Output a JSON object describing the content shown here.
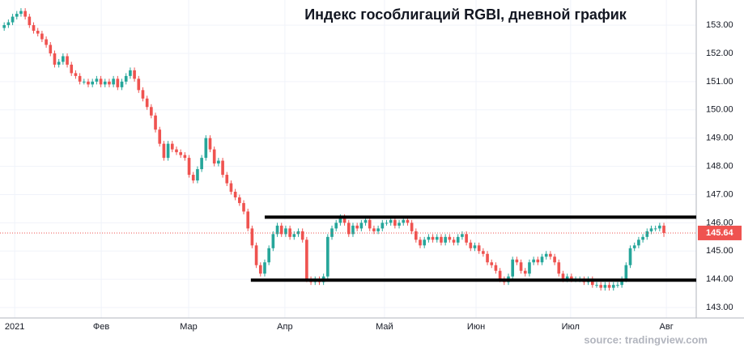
{
  "chart_data": {
    "type": "candlestick",
    "title": "Индекс гособлигаций RGBI, дневной график",
    "source": "source: tradingview.com",
    "up_color": "#26a69a",
    "down_color": "#ef5350",
    "grid": true,
    "xlim": [
      -1,
      164.7
    ],
    "ylim": [
      142.63,
      153.89
    ],
    "xticks": [
      {
        "value": 2.5,
        "label": "2021"
      },
      {
        "value": 23.1,
        "label": "Фев"
      },
      {
        "value": 43.9,
        "label": "Мар"
      },
      {
        "value": 66.8,
        "label": "Апр"
      },
      {
        "value": 90.5,
        "label": "Май"
      },
      {
        "value": 112.3,
        "label": "Июн"
      },
      {
        "value": 134.8,
        "label": "Июл"
      },
      {
        "value": 157.6,
        "label": "Авг"
      }
    ],
    "yticks": [
      {
        "value": 143,
        "label": "143.00"
      },
      {
        "value": 144,
        "label": "144.00"
      },
      {
        "value": 145,
        "label": "145.00"
      },
      {
        "value": 146,
        "label": "146.00"
      },
      {
        "value": 147,
        "label": "147.00"
      },
      {
        "value": 148,
        "label": "148.00"
      },
      {
        "value": 149,
        "label": "149.00"
      },
      {
        "value": 150,
        "label": "150.00"
      },
      {
        "value": 151,
        "label": "151.00"
      },
      {
        "value": 152,
        "label": "152.00"
      },
      {
        "value": 153,
        "label": "153.00"
      }
    ],
    "last_price": 145.64,
    "lines": [
      {
        "y": 146.2,
        "x0": 62,
        "x1": 164.7
      },
      {
        "y": 143.97,
        "x0": 58.7,
        "x1": 164.7
      }
    ],
    "open": [
      152.9,
      153.0,
      153.1,
      153.3,
      153.4,
      153.5,
      153.3,
      153.0,
      152.8,
      152.7,
      152.5,
      152.3,
      152.0,
      151.6,
      151.7,
      151.9,
      151.6,
      151.3,
      151.2,
      151.0,
      151.0,
      150.9,
      151.0,
      151.1,
      150.9,
      151.0,
      150.9,
      151.1,
      150.8,
      151.0,
      151.2,
      151.4,
      151.1,
      150.7,
      150.4,
      150.1,
      149.8,
      149.3,
      148.8,
      148.3,
      148.8,
      148.6,
      148.5,
      148.4,
      148.3,
      147.7,
      147.5,
      147.9,
      148.3,
      149.0,
      148.6,
      148.1,
      148.2,
      147.7,
      147.4,
      147.1,
      146.9,
      146.7,
      146.4,
      145.8,
      145.2,
      144.5,
      144.2,
      144.6,
      145.1,
      145.6,
      145.9,
      145.6,
      145.8,
      145.5,
      145.6,
      145.7,
      145.4,
      144.0,
      143.9,
      144.0,
      143.9,
      144.1,
      145.5,
      145.8,
      146.0,
      146.2,
      146.0,
      145.6,
      145.9,
      145.8,
      146.0,
      146.1,
      145.8,
      145.7,
      145.8,
      146.0,
      146.0,
      146.1,
      145.9,
      146.0,
      146.1,
      146.0,
      145.7,
      145.4,
      145.2,
      145.4,
      145.5,
      145.4,
      145.5,
      145.3,
      145.5,
      145.4,
      145.3,
      145.5,
      145.6,
      145.3,
      145.1,
      145.2,
      145.0,
      144.9,
      144.6,
      144.5,
      144.3,
      144.0,
      143.9,
      144.1,
      144.7,
      144.6,
      144.3,
      144.2,
      144.6,
      144.7,
      144.6,
      144.8,
      144.9,
      144.8,
      144.6,
      144.2,
      144.0,
      144.1,
      144.0,
      144.0,
      144.0,
      143.9,
      144.0,
      143.8,
      143.8,
      143.7,
      143.8,
      143.7,
      143.8,
      143.8,
      144.0,
      144.5,
      145.1,
      145.2,
      145.4,
      145.5,
      145.7,
      145.8,
      145.8,
      145.9
    ],
    "high": [
      153.1,
      153.2,
      153.4,
      153.5,
      153.6,
      153.6,
      153.4,
      153.1,
      152.9,
      152.8,
      152.6,
      152.4,
      152.1,
      151.8,
      152.0,
      152.0,
      151.7,
      151.4,
      151.3,
      151.1,
      151.1,
      151.1,
      151.2,
      151.2,
      151.1,
      151.1,
      151.2,
      151.2,
      151.1,
      151.3,
      151.5,
      151.5,
      151.2,
      150.8,
      150.5,
      150.2,
      149.9,
      149.4,
      148.9,
      148.9,
      148.9,
      148.7,
      148.6,
      148.5,
      148.4,
      147.8,
      148.0,
      148.4,
      149.1,
      149.1,
      148.7,
      148.3,
      148.3,
      147.8,
      147.5,
      147.2,
      147.0,
      146.8,
      146.5,
      145.9,
      145.3,
      144.6,
      144.7,
      145.2,
      145.7,
      146.0,
      146.0,
      145.9,
      145.9,
      145.7,
      145.8,
      145.8,
      145.5,
      144.1,
      144.1,
      144.1,
      144.2,
      145.6,
      145.9,
      146.1,
      146.3,
      146.3,
      146.1,
      146.0,
      146.0,
      146.1,
      146.2,
      146.2,
      145.9,
      145.9,
      146.1,
      146.1,
      146.2,
      146.2,
      146.1,
      146.2,
      146.2,
      146.1,
      145.8,
      145.5,
      145.5,
      145.6,
      145.6,
      145.6,
      145.6,
      145.6,
      145.6,
      145.5,
      145.6,
      145.7,
      145.7,
      145.4,
      145.3,
      145.3,
      145.1,
      145.0,
      144.7,
      144.6,
      144.4,
      144.1,
      144.2,
      144.8,
      144.8,
      144.7,
      144.4,
      144.7,
      144.8,
      144.8,
      144.9,
      145.0,
      145.0,
      144.9,
      144.7,
      144.3,
      144.2,
      144.2,
      144.1,
      144.1,
      144.1,
      144.1,
      144.1,
      143.9,
      143.9,
      143.9,
      143.9,
      143.9,
      143.9,
      144.1,
      144.6,
      145.2,
      145.3,
      145.5,
      145.6,
      145.8,
      145.9,
      145.9,
      146.0,
      146.0
    ],
    "low": [
      152.8,
      152.9,
      153.0,
      153.2,
      153.3,
      153.2,
      152.9,
      152.7,
      152.6,
      152.4,
      152.2,
      151.9,
      151.5,
      151.5,
      151.6,
      151.5,
      151.2,
      151.1,
      150.9,
      150.9,
      150.8,
      150.8,
      150.9,
      150.8,
      150.8,
      150.8,
      150.8,
      150.7,
      150.7,
      150.9,
      151.1,
      151.0,
      150.6,
      150.3,
      150.0,
      149.7,
      149.2,
      148.7,
      148.2,
      148.2,
      148.5,
      148.4,
      148.3,
      148.2,
      147.6,
      147.4,
      147.4,
      147.8,
      148.2,
      148.5,
      148.0,
      148.0,
      147.6,
      147.3,
      147.0,
      146.8,
      146.6,
      146.3,
      145.7,
      145.1,
      144.4,
      144.1,
      144.1,
      144.5,
      145.0,
      145.5,
      145.5,
      145.5,
      145.4,
      145.4,
      145.5,
      145.3,
      143.9,
      143.8,
      143.8,
      143.8,
      143.8,
      144.0,
      145.4,
      145.7,
      145.9,
      145.9,
      145.5,
      145.5,
      145.7,
      145.7,
      145.9,
      145.7,
      145.6,
      145.6,
      145.7,
      145.9,
      145.9,
      145.8,
      145.8,
      145.9,
      145.9,
      145.6,
      145.3,
      145.1,
      145.1,
      145.3,
      145.3,
      145.3,
      145.2,
      145.2,
      145.3,
      145.2,
      145.2,
      145.4,
      145.2,
      145.0,
      145.0,
      144.9,
      144.8,
      144.5,
      144.4,
      144.2,
      143.9,
      143.8,
      143.8,
      144.0,
      144.5,
      144.2,
      144.1,
      144.1,
      144.5,
      144.5,
      144.5,
      144.7,
      144.7,
      144.5,
      144.1,
      143.9,
      143.9,
      143.9,
      143.9,
      143.9,
      143.8,
      143.8,
      143.7,
      143.7,
      143.6,
      143.6,
      143.6,
      143.6,
      143.7,
      143.7,
      143.9,
      144.4,
      145.0,
      145.1,
      145.3,
      145.4,
      145.6,
      145.7,
      145.7,
      145.5
    ],
    "close": [
      153.0,
      153.1,
      153.3,
      153.4,
      153.5,
      153.3,
      153.0,
      152.8,
      152.7,
      152.5,
      152.3,
      152.0,
      151.6,
      151.7,
      151.9,
      151.6,
      151.3,
      151.2,
      151.0,
      151.0,
      150.9,
      151.0,
      151.1,
      150.9,
      151.0,
      150.9,
      151.1,
      150.8,
      151.0,
      151.2,
      151.4,
      151.1,
      150.7,
      150.4,
      150.1,
      149.8,
      149.3,
      148.8,
      148.3,
      148.8,
      148.6,
      148.5,
      148.4,
      148.3,
      147.7,
      147.5,
      147.9,
      148.3,
      149.0,
      148.6,
      148.1,
      148.2,
      147.7,
      147.4,
      147.1,
      146.9,
      146.7,
      146.4,
      145.8,
      145.2,
      144.5,
      144.2,
      144.6,
      145.1,
      145.6,
      145.9,
      145.6,
      145.8,
      145.5,
      145.6,
      145.7,
      145.4,
      144.0,
      143.9,
      144.0,
      143.9,
      144.1,
      145.5,
      145.8,
      146.0,
      146.2,
      146.0,
      145.6,
      145.9,
      145.8,
      146.0,
      146.1,
      145.8,
      145.7,
      145.8,
      146.0,
      146.0,
      146.1,
      145.9,
      146.0,
      146.1,
      146.0,
      145.7,
      145.4,
      145.2,
      145.4,
      145.5,
      145.4,
      145.5,
      145.3,
      145.5,
      145.4,
      145.3,
      145.5,
      145.6,
      145.3,
      145.1,
      145.2,
      145.0,
      144.9,
      144.6,
      144.5,
      144.3,
      144.0,
      143.9,
      144.1,
      144.7,
      144.6,
      144.3,
      144.2,
      144.6,
      144.7,
      144.6,
      144.8,
      144.9,
      144.8,
      144.6,
      144.2,
      144.0,
      144.1,
      144.0,
      144.0,
      144.0,
      143.9,
      144.0,
      143.8,
      143.8,
      143.7,
      143.8,
      143.7,
      143.8,
      143.8,
      144.0,
      144.5,
      145.1,
      145.2,
      145.4,
      145.5,
      145.7,
      145.8,
      145.8,
      145.9,
      145.64
    ]
  }
}
